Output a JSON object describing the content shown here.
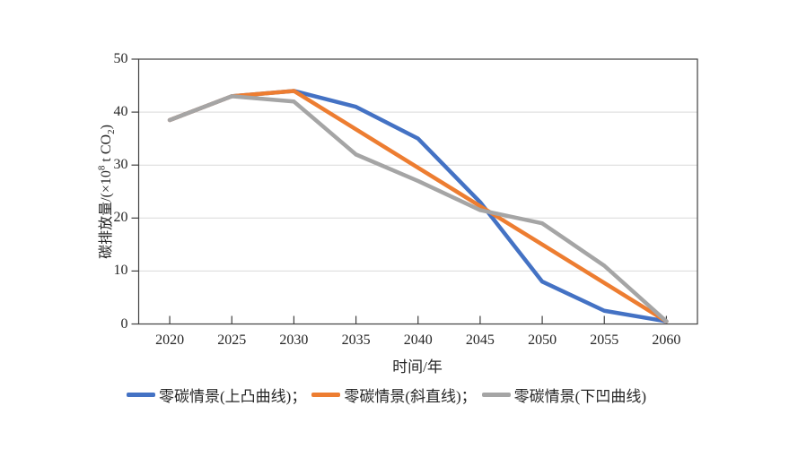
{
  "figure": {
    "background": "#ffffff",
    "y_axis_title_parts": {
      "prefix": "碳排放量/(×10",
      "sup": "8",
      "mid": " t CO",
      "sub": "2",
      "suffix": ")"
    },
    "x_axis_title": "时间/年"
  },
  "chart_data": {
    "type": "line",
    "title": "",
    "xlabel": "时间/年",
    "ylabel": "碳排放量/(×10⁸ t CO₂)",
    "x": [
      2020,
      2025,
      2030,
      2035,
      2040,
      2045,
      2050,
      2055,
      2060
    ],
    "ylim": [
      0,
      50
    ],
    "yticks": [
      0,
      10,
      20,
      30,
      40,
      50
    ],
    "grid": "horizontal",
    "legend_position": "bottom",
    "series": [
      {
        "name": "零碳情景(上凸曲线)",
        "legend_label": "零碳情景(上凸曲线)；",
        "color": "#4472C4",
        "values": [
          38.5,
          43,
          44,
          41,
          35,
          23,
          8,
          2.5,
          0.5
        ]
      },
      {
        "name": "零碳情景(斜直线)",
        "legend_label": "零碳情景(斜直线)；",
        "color": "#ED7D31",
        "values": [
          38.5,
          43,
          44,
          36.75,
          29.5,
          22.25,
          15,
          7.75,
          0.5
        ]
      },
      {
        "name": "零碳情景(下凹曲线)",
        "legend_label": "零碳情景(下凹曲线)",
        "color": "#A5A5A5",
        "values": [
          38.5,
          43,
          42,
          32,
          27,
          21.5,
          19,
          11,
          0.5
        ]
      }
    ],
    "colors": {
      "gridline": "#d9d9d9",
      "axis": "#404040",
      "text": "#262626"
    }
  }
}
